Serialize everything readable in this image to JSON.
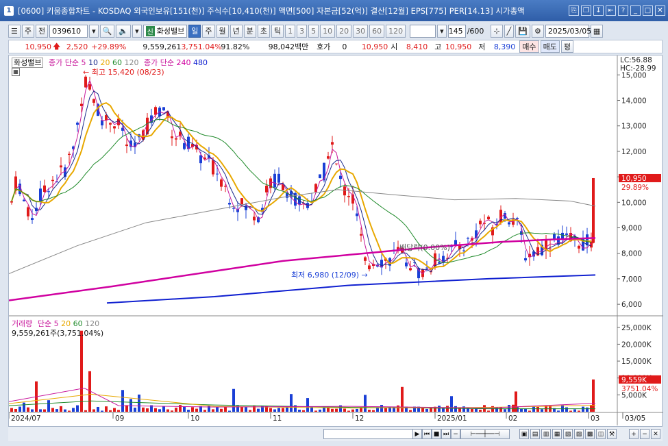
{
  "window": {
    "badge": "1",
    "title": "[0600] 키움종합차트 - KOSDAQ 외국인보유[151(천)] 주식수[10,410(천)] 액면[500] 자본금[52(억)] 결산[12월] EPS[775] PER[14.13] 시가총액"
  },
  "toolbar": {
    "period_unit": "주",
    "jeon": "전",
    "code": "039610",
    "stock_tag": "신",
    "stock_name": "화성밸브",
    "period_buttons": [
      "일",
      "주",
      "월",
      "년",
      "분",
      "초",
      "틱"
    ],
    "active_period": "일",
    "minute_buttons": [
      "1",
      "3",
      "5",
      "10",
      "20",
      "30",
      "60",
      "120"
    ],
    "count": "145",
    "count_total": "/600",
    "date": "2025/03/05"
  },
  "quote": {
    "price": "10,950",
    "change": "2,520",
    "change_pct": "+29.89%",
    "volume": "9,559,261",
    "volume_pct": "3,751.04%",
    "turnover": "91.82%",
    "amount": "98,042백만",
    "hoga_label": "호가",
    "hoga_value": "0",
    "hoga_price": "10,950",
    "open_label": "시",
    "open": "8,410",
    "high_label": "고",
    "high": "10,950",
    "low_label": "저",
    "low": "8,390",
    "buy_label": "매수",
    "sell_label": "매도",
    "avg_label": "평"
  },
  "price_panel": {
    "stock_label": "화성밸브",
    "ma_label": "종가 단순",
    "ma_periods": [
      "5",
      "10",
      "20",
      "60",
      "120"
    ],
    "ma2_label": "종가 단순",
    "ma2_periods": [
      "240",
      "480"
    ],
    "high_note": "최고 15,420 (08/23)",
    "low_note": "최저 6,980 (12/09)",
    "event_note": "배당락(0.00%)",
    "lc": "LC:56.88",
    "hc": "HC:-28.99",
    "last_price_tag": "10,950",
    "last_pct_tag": "29.89%",
    "yaxis": [
      "15,000",
      "14,000",
      "13,000",
      "12,000",
      "11,000",
      "10,000",
      "9,000",
      "8,000",
      "7,000",
      "6,000"
    ]
  },
  "volume_panel": {
    "label": "거래량",
    "ma_label": "단순",
    "ma_periods": [
      "5",
      "20",
      "60",
      "120"
    ],
    "volume_text": "9,559,261주(3,751.04%)",
    "yaxis": [
      "25,000K",
      "20,000K",
      "15,000K",
      "10,000K",
      "5,000K"
    ],
    "last_tag": "9,559K",
    "last_pct": "3751.04%"
  },
  "xaxis": [
    "2024/07",
    "09",
    "10",
    "11",
    "12",
    "2025/01",
    "02",
    "03",
    "03/05"
  ],
  "colors": {
    "up": "#e01a1a",
    "down": "#1a3fd6",
    "ma5": "#c8189c",
    "ma10": "#1a2a8c",
    "ma20": "#e8a800",
    "ma60": "#1f8a2a",
    "ma120": "#888888",
    "ma240": "#d000a0",
    "ma480": "#1020d0"
  }
}
